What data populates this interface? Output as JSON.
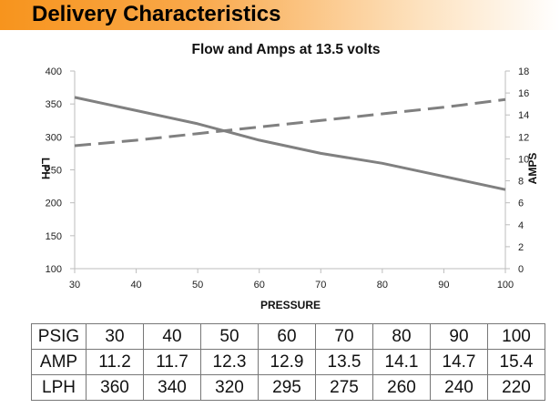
{
  "header": {
    "title": "Delivery Characteristics"
  },
  "colors": {
    "header_orange": "#f7941d",
    "series": "#808080"
  },
  "chart_data": {
    "type": "line",
    "title": "Flow and Amps at 13.5 volts",
    "xlabel": "PRESSURE",
    "ylabel_left": "LPH",
    "ylabel_right": "AMPS",
    "x": [
      30,
      40,
      50,
      60,
      70,
      80,
      90,
      100
    ],
    "xlim": [
      30,
      100
    ],
    "ylim_left": [
      100,
      400
    ],
    "ylim_right": [
      0,
      18
    ],
    "x_ticks": [
      30,
      40,
      50,
      60,
      70,
      80,
      90,
      100
    ],
    "y_left_ticks": [
      100,
      150,
      200,
      250,
      300,
      350,
      400
    ],
    "y_right_ticks": [
      0,
      2,
      4,
      6,
      8,
      10,
      12,
      14,
      16,
      18
    ],
    "grid": false,
    "series": [
      {
        "axis": "left",
        "style": "solid",
        "values": [
          360,
          340,
          320,
          295,
          275,
          260,
          240,
          220
        ]
      },
      {
        "axis": "right",
        "style": "dashed",
        "values": [
          11.2,
          11.7,
          12.3,
          12.9,
          13.5,
          14.1,
          14.7,
          15.4
        ]
      }
    ]
  },
  "table": {
    "rows": [
      {
        "label": "PSIG",
        "values": [
          "30",
          "40",
          "50",
          "60",
          "70",
          "80",
          "90",
          "100"
        ]
      },
      {
        "label": "AMP",
        "values": [
          "11.2",
          "11.7",
          "12.3",
          "12.9",
          "13.5",
          "14.1",
          "14.7",
          "15.4"
        ]
      },
      {
        "label": "LPH",
        "values": [
          "360",
          "340",
          "320",
          "295",
          "275",
          "260",
          "240",
          "220"
        ]
      }
    ]
  }
}
